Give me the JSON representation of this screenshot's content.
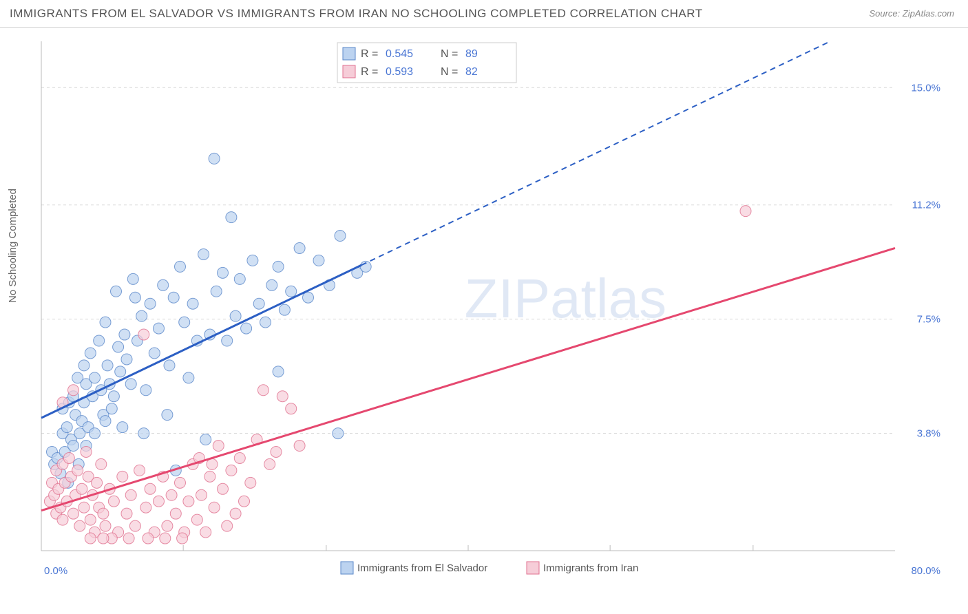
{
  "header": {
    "title": "IMMIGRANTS FROM EL SALVADOR VS IMMIGRANTS FROM IRAN NO SCHOOLING COMPLETED CORRELATION CHART",
    "source": "Source: ZipAtlas.com"
  },
  "chart": {
    "type": "scatter",
    "ylabel": "No Schooling Completed",
    "xlim": [
      0,
      80
    ],
    "ylim": [
      0,
      16.5
    ],
    "xticks": [
      {
        "v": 0,
        "label": "0.0%"
      },
      {
        "v": 80,
        "label": "80.0%"
      }
    ],
    "xminor": [
      13.3,
      26.7,
      40,
      53.3,
      66.7
    ],
    "yticks": [
      {
        "v": 3.8,
        "label": "3.8%"
      },
      {
        "v": 7.5,
        "label": "7.5%"
      },
      {
        "v": 11.2,
        "label": "11.2%"
      },
      {
        "v": 15.0,
        "label": "15.0%"
      }
    ],
    "grid_color": "#d8d8d8",
    "axis_color": "#bbbbbb",
    "background_color": "#ffffff",
    "watermark": "ZIPatlas",
    "legend_top": {
      "rows": [
        {
          "swatch_fill": "#bcd3f0",
          "swatch_border": "#5a87c9",
          "r_label": "R =",
          "r": "0.545",
          "n_label": "N =",
          "n": "89"
        },
        {
          "swatch_fill": "#f6cdd8",
          "swatch_border": "#e0708f",
          "r_label": "R =",
          "r": "0.593",
          "n_label": "N =",
          "n": "82"
        }
      ]
    },
    "legend_bottom": [
      {
        "swatch_fill": "#bcd3f0",
        "swatch_border": "#5a87c9",
        "label": "Immigrants from El Salvador"
      },
      {
        "swatch_fill": "#f6cdd8",
        "swatch_border": "#e0708f",
        "label": "Immigrants from Iran"
      }
    ],
    "series": [
      {
        "name": "el_salvador",
        "marker_fill": "#bcd3f0",
        "marker_stroke": "#5a87c9",
        "marker_opacity": 0.7,
        "marker_r": 8,
        "line_color": "#2c5fc4",
        "line_width": 3,
        "line_solid_until_x": 30,
        "line_y_at_x0": 4.3,
        "line_y_at_xmax": 17.5,
        "points": [
          [
            1.0,
            3.2
          ],
          [
            1.2,
            2.8
          ],
          [
            1.5,
            3.0
          ],
          [
            1.8,
            2.5
          ],
          [
            2.0,
            3.8
          ],
          [
            2.0,
            4.6
          ],
          [
            2.2,
            3.2
          ],
          [
            2.4,
            4.0
          ],
          [
            2.5,
            2.2
          ],
          [
            2.6,
            4.8
          ],
          [
            2.8,
            3.6
          ],
          [
            3.0,
            5.0
          ],
          [
            3.0,
            3.4
          ],
          [
            3.2,
            4.4
          ],
          [
            3.4,
            5.6
          ],
          [
            3.5,
            2.8
          ],
          [
            3.6,
            3.8
          ],
          [
            3.8,
            4.2
          ],
          [
            4.0,
            6.0
          ],
          [
            4.0,
            4.8
          ],
          [
            4.2,
            3.4
          ],
          [
            4.2,
            5.4
          ],
          [
            4.4,
            4.0
          ],
          [
            4.6,
            6.4
          ],
          [
            4.8,
            5.0
          ],
          [
            5.0,
            5.6
          ],
          [
            5.0,
            3.8
          ],
          [
            5.4,
            6.8
          ],
          [
            5.6,
            5.2
          ],
          [
            5.8,
            4.4
          ],
          [
            6.0,
            7.4
          ],
          [
            6.2,
            6.0
          ],
          [
            6.4,
            5.4
          ],
          [
            6.6,
            4.6
          ],
          [
            7.0,
            8.4
          ],
          [
            7.2,
            6.6
          ],
          [
            7.4,
            5.8
          ],
          [
            7.8,
            7.0
          ],
          [
            8.0,
            6.2
          ],
          [
            8.4,
            5.4
          ],
          [
            8.6,
            8.8
          ],
          [
            9.0,
            6.8
          ],
          [
            9.4,
            7.6
          ],
          [
            9.8,
            5.2
          ],
          [
            10.2,
            8.0
          ],
          [
            10.6,
            6.4
          ],
          [
            11.0,
            7.2
          ],
          [
            11.4,
            8.6
          ],
          [
            12.0,
            6.0
          ],
          [
            12.4,
            8.2
          ],
          [
            13.0,
            9.2
          ],
          [
            13.4,
            7.4
          ],
          [
            13.8,
            5.6
          ],
          [
            14.2,
            8.0
          ],
          [
            14.6,
            6.8
          ],
          [
            15.2,
            9.6
          ],
          [
            15.8,
            7.0
          ],
          [
            16.2,
            12.7
          ],
          [
            16.4,
            8.4
          ],
          [
            17.0,
            9.0
          ],
          [
            17.4,
            6.8
          ],
          [
            17.8,
            10.8
          ],
          [
            18.2,
            7.6
          ],
          [
            18.6,
            8.8
          ],
          [
            19.2,
            7.2
          ],
          [
            19.8,
            9.4
          ],
          [
            20.4,
            8.0
          ],
          [
            21.0,
            7.4
          ],
          [
            21.6,
            8.6
          ],
          [
            22.2,
            9.2
          ],
          [
            22.8,
            7.8
          ],
          [
            22.2,
            5.8
          ],
          [
            23.4,
            8.4
          ],
          [
            24.2,
            9.8
          ],
          [
            25.0,
            8.2
          ],
          [
            26.0,
            9.4
          ],
          [
            27.0,
            8.6
          ],
          [
            28.0,
            10.2
          ],
          [
            29.6,
            9.0
          ],
          [
            30.4,
            9.2
          ],
          [
            27.8,
            3.8
          ],
          [
            15.4,
            3.6
          ],
          [
            12.6,
            2.6
          ],
          [
            11.8,
            4.4
          ],
          [
            9.6,
            3.8
          ],
          [
            8.8,
            8.2
          ],
          [
            7.6,
            4.0
          ],
          [
            6.8,
            5.0
          ],
          [
            6.0,
            4.2
          ]
        ]
      },
      {
        "name": "iran",
        "marker_fill": "#f6cdd8",
        "marker_stroke": "#e0708f",
        "marker_opacity": 0.7,
        "marker_r": 8,
        "line_color": "#e5486f",
        "line_width": 3,
        "line_solid_until_x": 80,
        "line_y_at_x0": 1.3,
        "line_y_at_xmax": 9.8,
        "points": [
          [
            0.8,
            1.6
          ],
          [
            1.0,
            2.2
          ],
          [
            1.2,
            1.8
          ],
          [
            1.4,
            2.6
          ],
          [
            1.4,
            1.2
          ],
          [
            1.6,
            2.0
          ],
          [
            1.8,
            1.4
          ],
          [
            2.0,
            2.8
          ],
          [
            2.0,
            1.0
          ],
          [
            2.0,
            4.8
          ],
          [
            2.2,
            2.2
          ],
          [
            2.4,
            1.6
          ],
          [
            2.6,
            3.0
          ],
          [
            2.8,
            2.4
          ],
          [
            3.0,
            1.2
          ],
          [
            3.0,
            5.2
          ],
          [
            3.2,
            1.8
          ],
          [
            3.4,
            2.6
          ],
          [
            3.6,
            0.8
          ],
          [
            3.8,
            2.0
          ],
          [
            4.0,
            1.4
          ],
          [
            4.2,
            3.2
          ],
          [
            4.4,
            2.4
          ],
          [
            4.6,
            1.0
          ],
          [
            4.8,
            1.8
          ],
          [
            5.0,
            0.6
          ],
          [
            5.2,
            2.2
          ],
          [
            5.4,
            1.4
          ],
          [
            5.6,
            2.8
          ],
          [
            5.8,
            1.2
          ],
          [
            6.0,
            0.8
          ],
          [
            6.4,
            2.0
          ],
          [
            6.8,
            1.6
          ],
          [
            7.2,
            0.6
          ],
          [
            7.6,
            2.4
          ],
          [
            8.0,
            1.2
          ],
          [
            8.4,
            1.8
          ],
          [
            8.8,
            0.8
          ],
          [
            9.2,
            2.6
          ],
          [
            9.6,
            7.0
          ],
          [
            9.8,
            1.4
          ],
          [
            10.2,
            2.0
          ],
          [
            10.6,
            0.6
          ],
          [
            11.0,
            1.6
          ],
          [
            11.4,
            2.4
          ],
          [
            11.8,
            0.8
          ],
          [
            12.2,
            1.8
          ],
          [
            12.6,
            1.2
          ],
          [
            13.0,
            2.2
          ],
          [
            13.4,
            0.6
          ],
          [
            13.8,
            1.6
          ],
          [
            14.2,
            2.8
          ],
          [
            14.6,
            1.0
          ],
          [
            15.0,
            1.8
          ],
          [
            15.4,
            0.6
          ],
          [
            15.8,
            2.4
          ],
          [
            16.2,
            1.4
          ],
          [
            16.6,
            3.4
          ],
          [
            17.0,
            2.0
          ],
          [
            17.4,
            0.8
          ],
          [
            17.8,
            2.6
          ],
          [
            18.2,
            1.2
          ],
          [
            18.6,
            3.0
          ],
          [
            19.0,
            1.6
          ],
          [
            19.6,
            2.2
          ],
          [
            20.2,
            3.6
          ],
          [
            20.8,
            5.2
          ],
          [
            21.4,
            2.8
          ],
          [
            22.0,
            3.2
          ],
          [
            22.6,
            5.0
          ],
          [
            23.4,
            4.6
          ],
          [
            24.2,
            3.4
          ],
          [
            10.0,
            0.4
          ],
          [
            11.6,
            0.4
          ],
          [
            13.2,
            0.4
          ],
          [
            8.2,
            0.4
          ],
          [
            6.6,
            0.4
          ],
          [
            5.8,
            0.4
          ],
          [
            4.6,
            0.4
          ],
          [
            66.0,
            11.0
          ],
          [
            14.8,
            3.0
          ],
          [
            16.0,
            2.8
          ]
        ]
      }
    ]
  }
}
